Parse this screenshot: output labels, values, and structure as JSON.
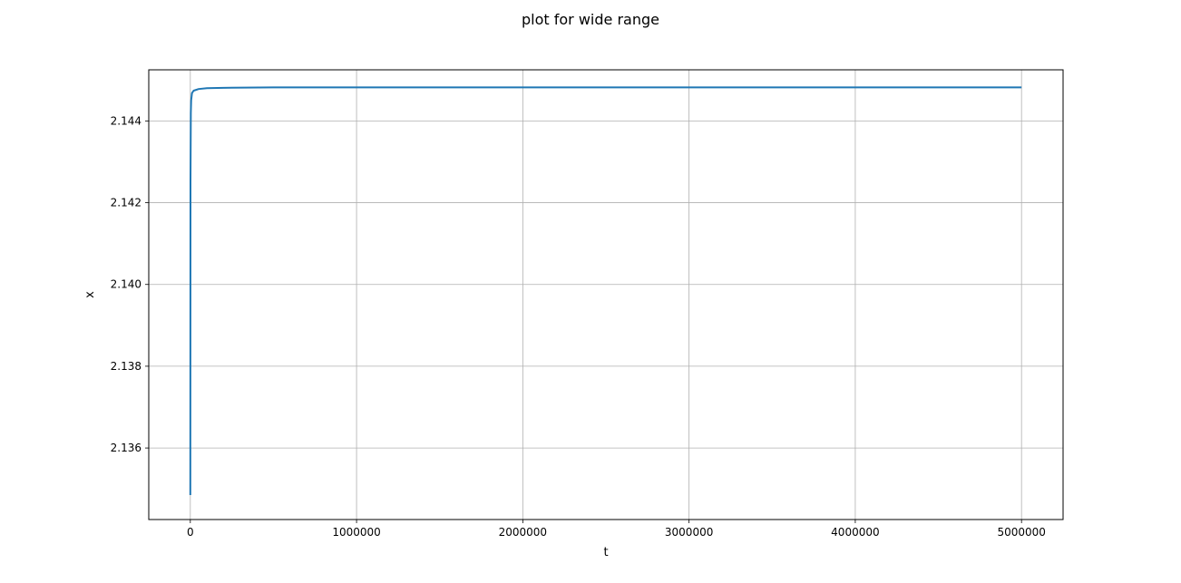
{
  "chart_data": {
    "type": "line",
    "title": "plot for wide range",
    "xlabel": "t",
    "ylabel": "x",
    "xlim": [
      -250000,
      5250000
    ],
    "ylim": [
      2.13425,
      2.14525
    ],
    "xticks": [
      0,
      1000000,
      2000000,
      3000000,
      4000000,
      5000000
    ],
    "xtick_labels": [
      "0",
      "1000000",
      "2000000",
      "3000000",
      "4000000",
      "5000000"
    ],
    "yticks": [
      2.136,
      2.138,
      2.14,
      2.142,
      2.144
    ],
    "ytick_labels": [
      "2.136",
      "2.138",
      "2.140",
      "2.142",
      "2.144"
    ],
    "grid": true,
    "series": [
      {
        "color": "#1f77b4",
        "x": [
          0,
          1000,
          3000,
          5000,
          10000,
          20000,
          50000,
          100000,
          200000,
          500000,
          1000000,
          2000000,
          3000000,
          4000000,
          5000000
        ],
        "y": [
          2.13485,
          2.1425,
          2.1442,
          2.1445,
          2.14468,
          2.14474,
          2.14478,
          2.1448,
          2.14481,
          2.14482,
          2.14482,
          2.14482,
          2.14482,
          2.14482,
          2.14482
        ]
      }
    ]
  }
}
